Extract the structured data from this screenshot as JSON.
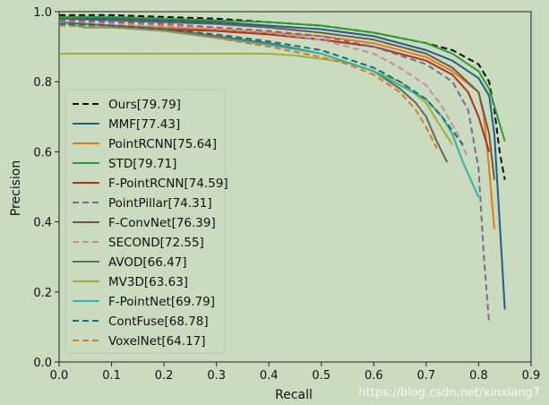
{
  "chart_data": {
    "type": "line",
    "title": "",
    "xlabel": "Recall",
    "ylabel": "Precision",
    "xlim": [
      0,
      0.9
    ],
    "ylim": [
      0,
      1.0
    ],
    "xticks": [
      "0.0",
      "0.1",
      "0.2",
      "0.3",
      "0.4",
      "0.5",
      "0.6",
      "0.7",
      "0.8",
      "0.9"
    ],
    "yticks": [
      "0.0",
      "0.2",
      "0.4",
      "0.6",
      "0.8",
      "1.0"
    ],
    "grid": false,
    "legend_position": "lower-left",
    "series": [
      {
        "name": "Ours[79.79]",
        "color": "#111111",
        "dash": true,
        "x": [
          0.0,
          0.1,
          0.2,
          0.3,
          0.4,
          0.5,
          0.6,
          0.7,
          0.75,
          0.8,
          0.82,
          0.83,
          0.84,
          0.85
        ],
        "y": [
          0.99,
          0.99,
          0.985,
          0.98,
          0.97,
          0.96,
          0.94,
          0.91,
          0.89,
          0.85,
          0.8,
          0.72,
          0.6,
          0.52
        ]
      },
      {
        "name": "MMF[77.43]",
        "color": "#1f5f8b",
        "dash": false,
        "x": [
          0.0,
          0.1,
          0.2,
          0.3,
          0.4,
          0.5,
          0.6,
          0.7,
          0.75,
          0.8,
          0.82,
          0.83,
          0.84,
          0.85
        ],
        "y": [
          0.98,
          0.98,
          0.975,
          0.97,
          0.96,
          0.95,
          0.93,
          0.89,
          0.86,
          0.81,
          0.76,
          0.65,
          0.4,
          0.15
        ]
      },
      {
        "name": "PointRCNN[75.64]",
        "color": "#e07b1a",
        "dash": false,
        "x": [
          0.0,
          0.1,
          0.2,
          0.3,
          0.4,
          0.5,
          0.6,
          0.7,
          0.75,
          0.8,
          0.81,
          0.82,
          0.83
        ],
        "y": [
          0.97,
          0.96,
          0.955,
          0.95,
          0.94,
          0.93,
          0.91,
          0.87,
          0.83,
          0.77,
          0.7,
          0.55,
          0.38
        ]
      },
      {
        "name": "STD[79.71]",
        "color": "#2f9c2f",
        "dash": false,
        "x": [
          0.0,
          0.1,
          0.2,
          0.3,
          0.4,
          0.5,
          0.6,
          0.7,
          0.75,
          0.8,
          0.82,
          0.84,
          0.85
        ],
        "y": [
          0.985,
          0.985,
          0.98,
          0.975,
          0.97,
          0.96,
          0.94,
          0.91,
          0.88,
          0.83,
          0.78,
          0.68,
          0.63
        ]
      },
      {
        "name": "F-PointRCNN[74.59]",
        "color": "#b0301e",
        "dash": false,
        "x": [
          0.0,
          0.05,
          0.1,
          0.2,
          0.3,
          0.4,
          0.5,
          0.6,
          0.7,
          0.75,
          0.78,
          0.8,
          0.82
        ],
        "y": [
          0.97,
          0.955,
          0.955,
          0.95,
          0.945,
          0.935,
          0.92,
          0.9,
          0.86,
          0.82,
          0.77,
          0.7,
          0.6
        ]
      },
      {
        "name": "PointPillar[74.31]",
        "color": "#7a6b8c",
        "dash": true,
        "x": [
          0.0,
          0.1,
          0.2,
          0.3,
          0.4,
          0.5,
          0.6,
          0.7,
          0.75,
          0.78,
          0.8,
          0.81,
          0.82
        ],
        "y": [
          0.975,
          0.97,
          0.965,
          0.955,
          0.945,
          0.93,
          0.9,
          0.85,
          0.8,
          0.72,
          0.55,
          0.3,
          0.11
        ]
      },
      {
        "name": "F-ConvNet[76.39]",
        "color": "#6b5a4e",
        "dash": false,
        "x": [
          0.0,
          0.1,
          0.2,
          0.3,
          0.4,
          0.5,
          0.6,
          0.7,
          0.75,
          0.8,
          0.82,
          0.83
        ],
        "y": [
          0.98,
          0.975,
          0.97,
          0.965,
          0.955,
          0.94,
          0.92,
          0.88,
          0.84,
          0.77,
          0.65,
          0.52
        ]
      },
      {
        "name": "SECOND[72.55]",
        "color": "#c98aa0",
        "dash": true,
        "x": [
          0.0,
          0.1,
          0.2,
          0.3,
          0.4,
          0.5,
          0.6,
          0.65,
          0.7,
          0.73,
          0.76,
          0.78
        ],
        "y": [
          0.97,
          0.965,
          0.96,
          0.95,
          0.94,
          0.92,
          0.88,
          0.84,
          0.79,
          0.73,
          0.65,
          0.58
        ]
      },
      {
        "name": "AVOD[66.47]",
        "color": "#5f6a60",
        "dash": false,
        "x": [
          0.0,
          0.1,
          0.2,
          0.3,
          0.4,
          0.5,
          0.6,
          0.65,
          0.68,
          0.7,
          0.72,
          0.74
        ],
        "y": [
          0.97,
          0.96,
          0.95,
          0.93,
          0.91,
          0.88,
          0.83,
          0.78,
          0.74,
          0.7,
          0.63,
          0.57
        ]
      },
      {
        "name": "MV3D[63.63]",
        "color": "#9fae3a",
        "dash": false,
        "x": [
          0.0,
          0.1,
          0.2,
          0.3,
          0.4,
          0.45,
          0.5,
          0.55,
          0.6,
          0.65,
          0.7,
          0.72,
          0.75
        ],
        "y": [
          0.88,
          0.88,
          0.88,
          0.88,
          0.88,
          0.875,
          0.865,
          0.855,
          0.83,
          0.8,
          0.74,
          0.69,
          0.62
        ]
      },
      {
        "name": "F-PointNet[69.79]",
        "color": "#2eb5a8",
        "dash": false,
        "x": [
          0.0,
          0.05,
          0.1,
          0.2,
          0.3,
          0.4,
          0.5,
          0.6,
          0.7,
          0.73,
          0.75,
          0.77,
          0.8
        ],
        "y": [
          0.97,
          0.955,
          0.955,
          0.945,
          0.925,
          0.905,
          0.88,
          0.83,
          0.75,
          0.7,
          0.65,
          0.57,
          0.47
        ]
      },
      {
        "name": "ContFuse[68.78]",
        "color": "#1f6a7a",
        "dash": true,
        "x": [
          0.0,
          0.1,
          0.2,
          0.3,
          0.4,
          0.5,
          0.6,
          0.65,
          0.7,
          0.73,
          0.75,
          0.77
        ],
        "y": [
          0.965,
          0.96,
          0.95,
          0.935,
          0.915,
          0.89,
          0.84,
          0.8,
          0.75,
          0.7,
          0.66,
          0.62
        ]
      },
      {
        "name": "VoxelNet[64.17]",
        "color": "#d97a1c",
        "dash": true,
        "x": [
          0.0,
          0.1,
          0.2,
          0.3,
          0.4,
          0.5,
          0.55,
          0.6,
          0.65,
          0.68,
          0.7,
          0.72
        ],
        "y": [
          0.96,
          0.955,
          0.945,
          0.925,
          0.9,
          0.87,
          0.85,
          0.82,
          0.77,
          0.72,
          0.67,
          0.61
        ]
      }
    ]
  },
  "watermark": "https://blog.csdn.net/xinxiang7"
}
